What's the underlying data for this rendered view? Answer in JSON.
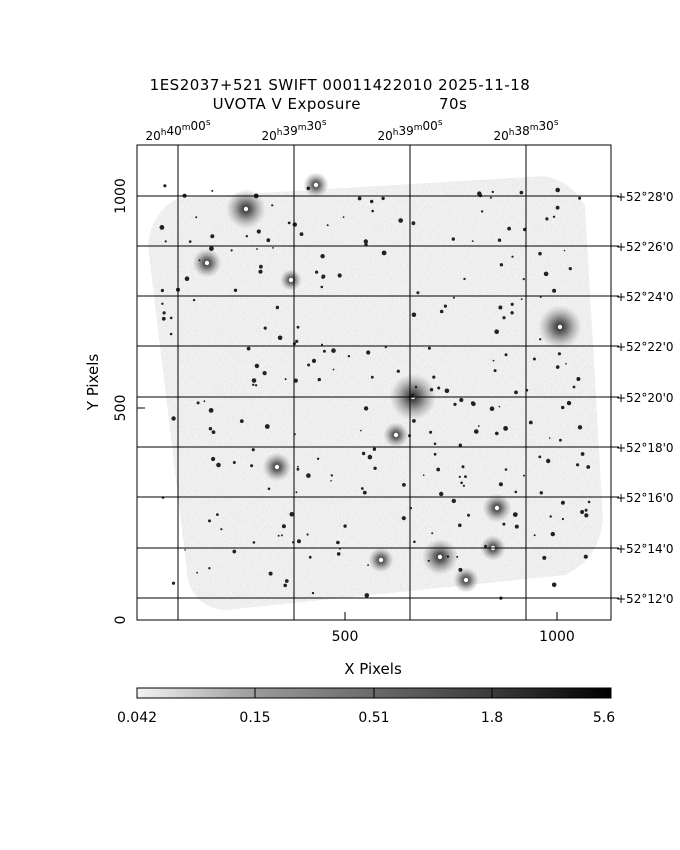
{
  "header": {
    "title_line1": "1ES2037+521 SWIFT 00011422010 2025-11-18",
    "title_line2": "UVOTA V Exposure",
    "exposure": "70s"
  },
  "axes": {
    "xlabel": "X Pixels",
    "ylabel": "Y Pixels",
    "x_ticks": [
      "500",
      "1000"
    ],
    "y_ticks": [
      "0",
      "500",
      "1000"
    ],
    "ra_ticks": [
      {
        "h": "20",
        "m": "40",
        "s": "00"
      },
      {
        "h": "20",
        "m": "39",
        "s": "30"
      },
      {
        "h": "20",
        "m": "39",
        "s": "00"
      },
      {
        "h": "20",
        "m": "38",
        "s": "30"
      }
    ],
    "dec_ticks": [
      "+52°28'0",
      "+52°26'0",
      "+52°24'0",
      "+52°22'0",
      "+52°20'0",
      "+52°18'0",
      "+52°16'0",
      "+52°14'0",
      "+52°12'0"
    ]
  },
  "colorbar": {
    "labels": [
      "0.042",
      "0.15",
      "0.51",
      "1.8",
      "5.6"
    ]
  },
  "colors": {
    "frame": "#000000",
    "field_fill": "#c4c4c4",
    "background": "#ffffff"
  }
}
